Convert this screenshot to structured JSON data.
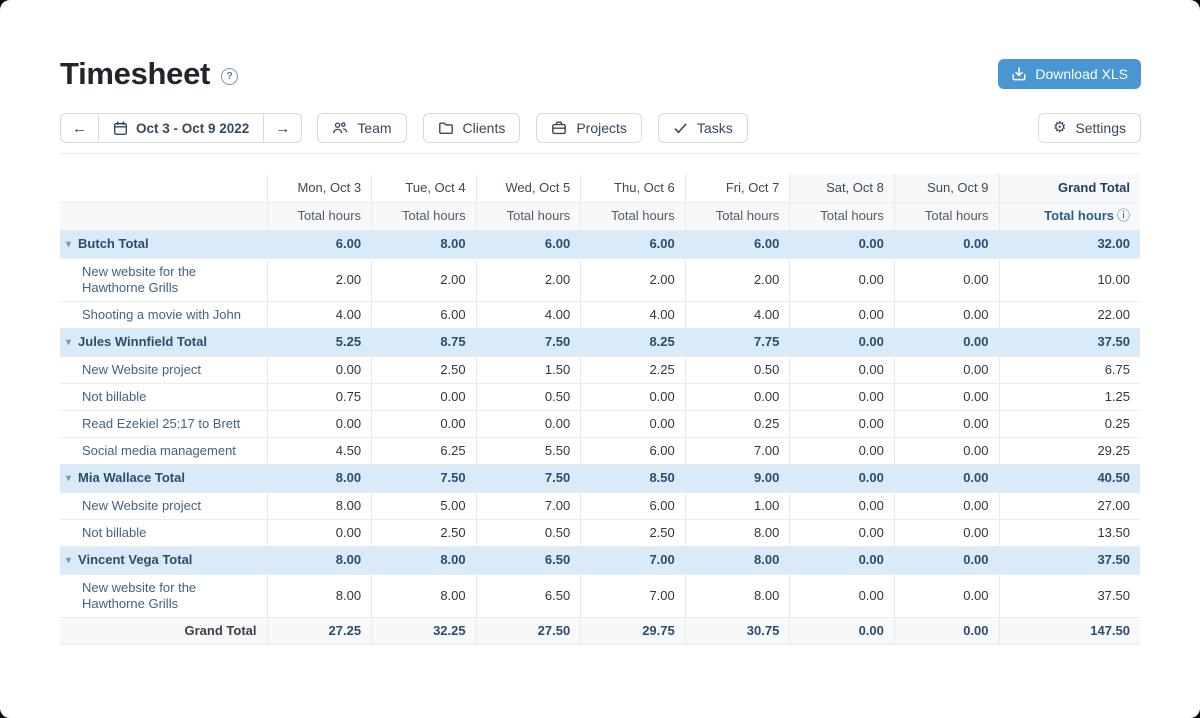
{
  "icons": {
    "help": "?",
    "arrow_left": "←",
    "arrow_right": "→",
    "gear": "⚙",
    "info": "ⓘ",
    "row_caret": "▾"
  },
  "header": {
    "title": "Timesheet",
    "download_label": "Download XLS"
  },
  "toolbar": {
    "date_range": "Oct 3 - Oct 9 2022",
    "filters": [
      {
        "label": "Team",
        "icon": "people-icon"
      },
      {
        "label": "Clients",
        "icon": "folder-icon"
      },
      {
        "label": "Projects",
        "icon": "briefcase-icon"
      },
      {
        "label": "Tasks",
        "icon": "check-icon"
      }
    ],
    "settings_label": "Settings"
  },
  "table": {
    "columns": [
      "Mon, Oct 3",
      "Tue, Oct 4",
      "Wed, Oct 5",
      "Thu, Oct 6",
      "Fri, Oct 7",
      "Sat, Oct 8",
      "Sun, Oct 9"
    ],
    "weekend_start_index": 5,
    "subheader": "Total hours",
    "grand_total_header": "Grand Total",
    "grand_total_subheader": "Total hours",
    "rows": [
      {
        "type": "group",
        "label": "Butch Total",
        "values": [
          "6.00",
          "8.00",
          "6.00",
          "6.00",
          "6.00",
          "0.00",
          "0.00"
        ],
        "total": "32.00"
      },
      {
        "type": "item",
        "label": "New website for the Hawthorne Grills",
        "values": [
          "2.00",
          "2.00",
          "2.00",
          "2.00",
          "2.00",
          "0.00",
          "0.00"
        ],
        "total": "10.00"
      },
      {
        "type": "item",
        "label": "Shooting a movie with John",
        "values": [
          "4.00",
          "6.00",
          "4.00",
          "4.00",
          "4.00",
          "0.00",
          "0.00"
        ],
        "total": "22.00"
      },
      {
        "type": "group",
        "label": "Jules Winnfield Total",
        "values": [
          "5.25",
          "8.75",
          "7.50",
          "8.25",
          "7.75",
          "0.00",
          "0.00"
        ],
        "total": "37.50"
      },
      {
        "type": "item",
        "label": "New Website project",
        "values": [
          "0.00",
          "2.50",
          "1.50",
          "2.25",
          "0.50",
          "0.00",
          "0.00"
        ],
        "total": "6.75"
      },
      {
        "type": "item",
        "label": "Not billable",
        "values": [
          "0.75",
          "0.00",
          "0.50",
          "0.00",
          "0.00",
          "0.00",
          "0.00"
        ],
        "total": "1.25"
      },
      {
        "type": "item",
        "label": "Read Ezekiel 25:17 to Brett",
        "values": [
          "0.00",
          "0.00",
          "0.00",
          "0.00",
          "0.25",
          "0.00",
          "0.00"
        ],
        "total": "0.25"
      },
      {
        "type": "item",
        "label": "Social media management",
        "values": [
          "4.50",
          "6.25",
          "5.50",
          "6.00",
          "7.00",
          "0.00",
          "0.00"
        ],
        "total": "29.25"
      },
      {
        "type": "group",
        "label": "Mia Wallace Total",
        "values": [
          "8.00",
          "7.50",
          "7.50",
          "8.50",
          "9.00",
          "0.00",
          "0.00"
        ],
        "total": "40.50"
      },
      {
        "type": "item",
        "label": "New Website project",
        "values": [
          "8.00",
          "5.00",
          "7.00",
          "6.00",
          "1.00",
          "0.00",
          "0.00"
        ],
        "total": "27.00"
      },
      {
        "type": "item",
        "label": "Not billable",
        "values": [
          "0.00",
          "2.50",
          "0.50",
          "2.50",
          "8.00",
          "0.00",
          "0.00"
        ],
        "total": "13.50"
      },
      {
        "type": "group",
        "label": "Vincent Vega Total",
        "values": [
          "8.00",
          "8.00",
          "6.50",
          "7.00",
          "8.00",
          "0.00",
          "0.00"
        ],
        "total": "37.50"
      },
      {
        "type": "item",
        "label": "New website for the Hawthorne Grills",
        "values": [
          "8.00",
          "8.00",
          "6.50",
          "7.00",
          "8.00",
          "0.00",
          "0.00"
        ],
        "total": "37.50"
      }
    ],
    "footer": {
      "label": "Grand Total",
      "values": [
        "27.25",
        "32.25",
        "27.50",
        "29.75",
        "30.75",
        "0.00",
        "0.00"
      ],
      "total": "147.50"
    }
  }
}
